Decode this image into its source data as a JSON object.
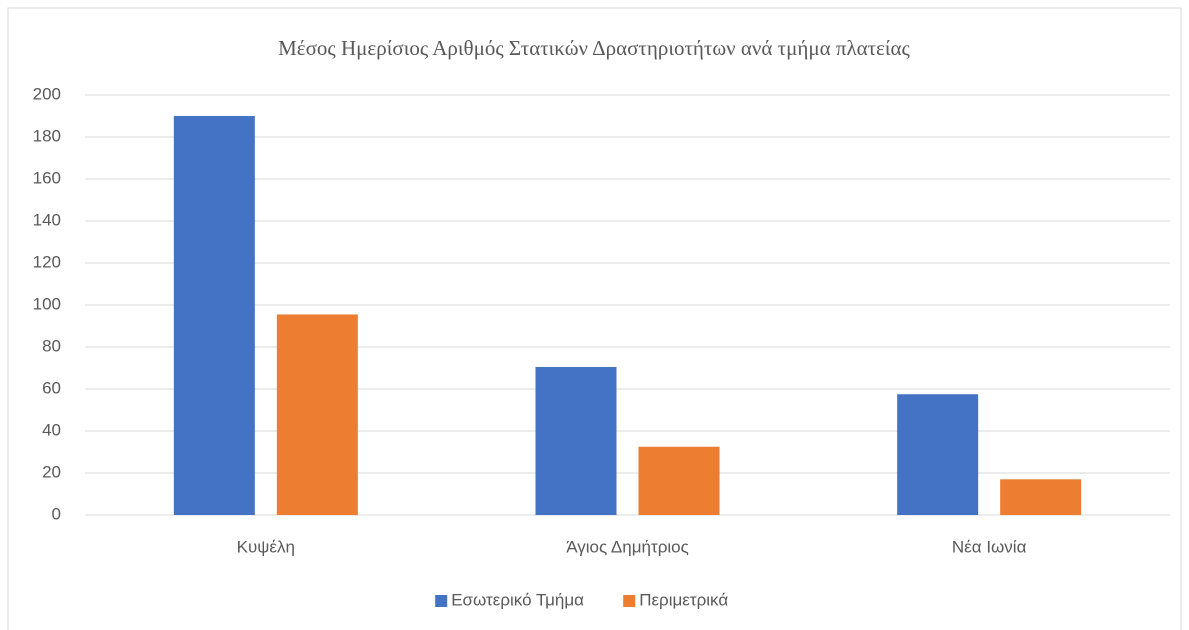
{
  "chart_data": {
    "type": "bar",
    "title": "Μέσος Ημερίσιος Αριθμός Στατικών Δραστηριοτήτων ανά τμήμα πλατείας",
    "categories": [
      "Κυψέλη",
      "Άγιος Δημήτριος",
      "Νέα Ιωνία"
    ],
    "series": [
      {
        "name": "Εσωτερικό Τμήμα",
        "color": "#4472c4",
        "values": [
          190,
          70.5,
          57.5
        ]
      },
      {
        "name": "Περιμετρικά",
        "color": "#ed7d31",
        "values": [
          95.5,
          32.5,
          17
        ]
      }
    ],
    "ylim": [
      0,
      200
    ],
    "yticks": [
      0,
      20,
      40,
      60,
      80,
      100,
      120,
      140,
      160,
      180,
      200
    ],
    "grid": true,
    "legend": "bottom"
  }
}
